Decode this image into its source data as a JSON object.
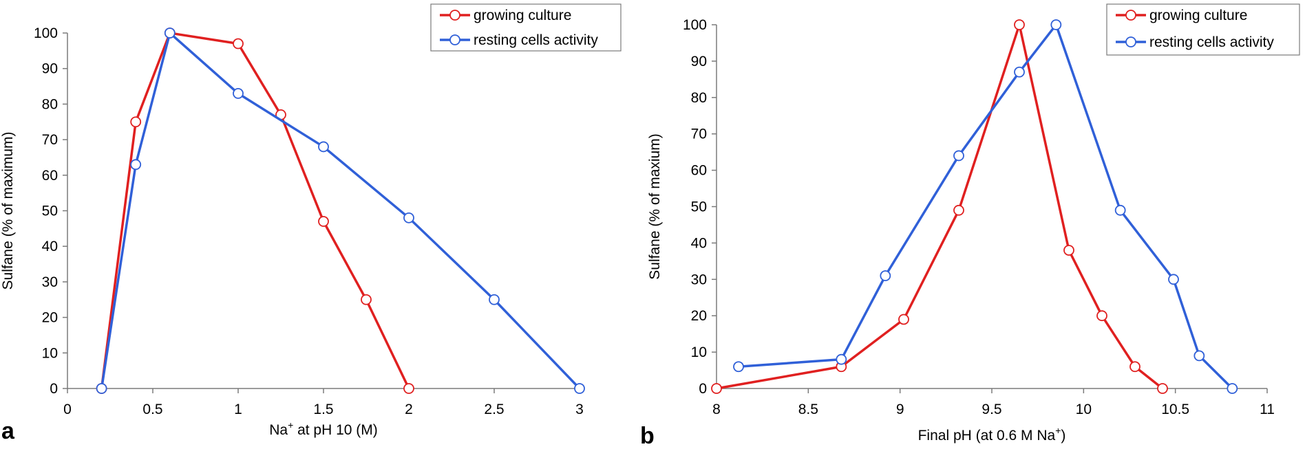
{
  "chart_data": [
    {
      "type": "line",
      "panel_label": "a",
      "xlabel_main": "Na",
      "xlabel_sup": "+",
      "xlabel_rest": " at pH 10  (M)",
      "ylabel": "Sulfane (% of maximum)",
      "xlim": [
        0,
        3
      ],
      "ylim": [
        0,
        100
      ],
      "xticks": [
        0,
        0.5,
        1,
        1.5,
        2,
        2.5,
        3
      ],
      "xtick_labels": [
        "0",
        "0.5",
        "1",
        "1.5",
        "2",
        "2.5",
        "3"
      ],
      "yticks": [
        0,
        10,
        20,
        30,
        40,
        50,
        60,
        70,
        80,
        90,
        100
      ],
      "ytick_labels": [
        "0",
        "10",
        "20",
        "30",
        "40",
        "50",
        "60",
        "70",
        "80",
        "90",
        "100"
      ],
      "legend_position": "top-right",
      "series": [
        {
          "name": "growing culture",
          "color": "#e02020",
          "x": [
            0.2,
            0.4,
            0.6,
            1.0,
            1.25,
            1.5,
            1.75,
            2.0
          ],
          "y": [
            0,
            75,
            100,
            97,
            77,
            47,
            25,
            0
          ]
        },
        {
          "name": "resting cells activity",
          "color": "#3060d8",
          "x": [
            0.2,
            0.4,
            0.6,
            1.0,
            1.5,
            2.0,
            2.5,
            3.0
          ],
          "y": [
            0,
            63,
            100,
            83,
            68,
            48,
            25,
            0
          ]
        }
      ]
    },
    {
      "type": "line",
      "panel_label": "b",
      "xlabel_main": "Final pH (at 0.6 M Na",
      "xlabel_sup": "+",
      "xlabel_rest": ")",
      "ylabel": "Sulfane (% of maxium)",
      "xlim": [
        8,
        11
      ],
      "ylim": [
        0,
        100
      ],
      "xticks": [
        8,
        8.5,
        9,
        9.5,
        10,
        10.5,
        11
      ],
      "xtick_labels": [
        "8",
        "8.5",
        "9",
        "9.5",
        "10",
        "10.5",
        "11"
      ],
      "yticks": [
        0,
        10,
        20,
        30,
        40,
        50,
        60,
        70,
        80,
        90,
        100
      ],
      "ytick_labels": [
        "0",
        "10",
        "20",
        "30",
        "40",
        "50",
        "60",
        "70",
        "80",
        "90",
        "100"
      ],
      "legend_position": "top-right",
      "series": [
        {
          "name": "growing culture",
          "color": "#e02020",
          "x": [
            8.0,
            8.68,
            9.02,
            9.32,
            9.65,
            9.92,
            10.1,
            10.28,
            10.43
          ],
          "y": [
            0,
            6,
            19,
            49,
            100,
            38,
            20,
            6,
            0
          ]
        },
        {
          "name": "resting cells activity",
          "color": "#3060d8",
          "x": [
            8.12,
            8.68,
            8.92,
            9.32,
            9.65,
            9.85,
            10.2,
            10.49,
            10.63,
            10.81
          ],
          "y": [
            6,
            8,
            31,
            64,
            87,
            100,
            49,
            30,
            9,
            0
          ]
        }
      ]
    }
  ]
}
